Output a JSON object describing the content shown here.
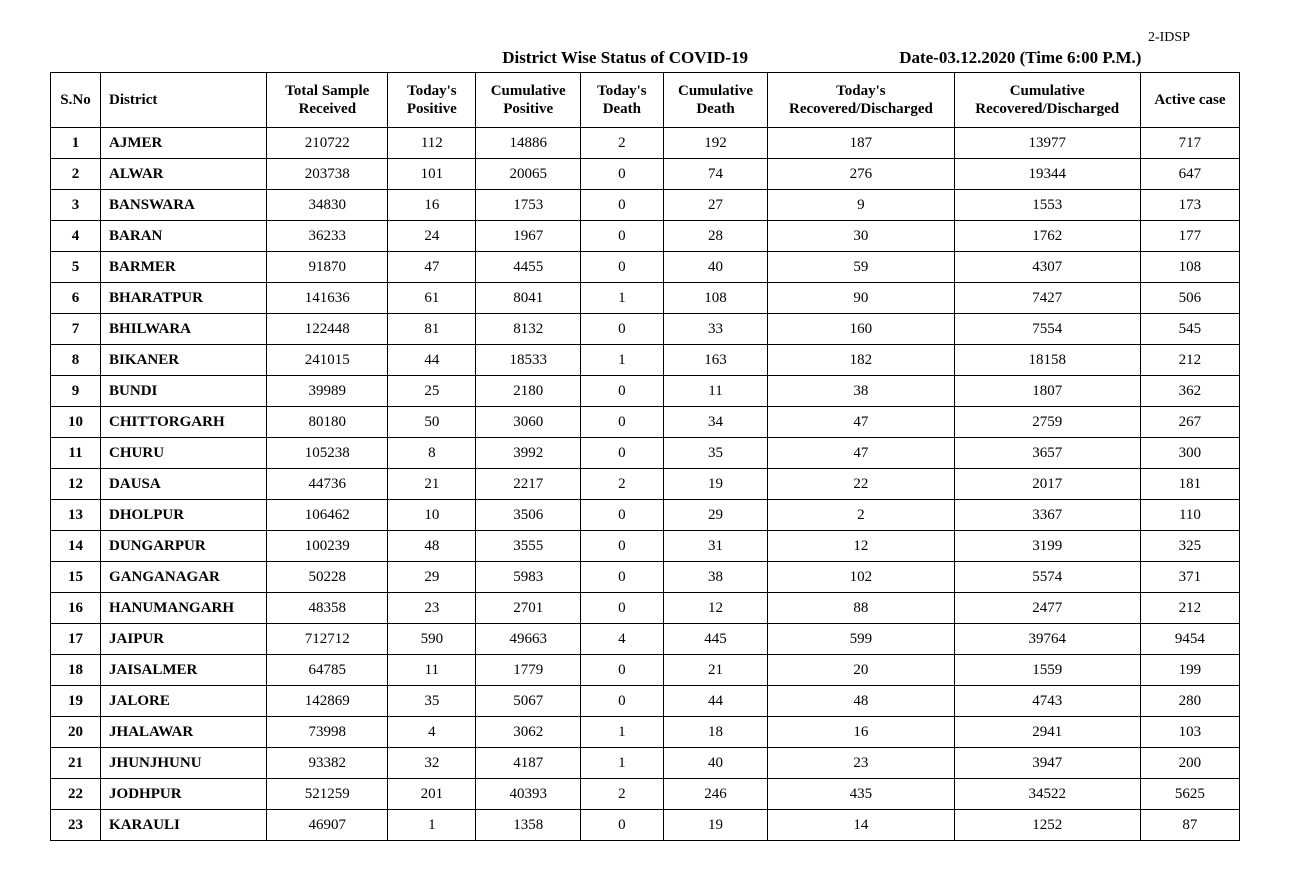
{
  "header": {
    "top_right": "2-IDSP",
    "title": "District Wise Status of  COVID-19",
    "date_label": "Date-03.12.2020 (Time 6:00 P.M.)"
  },
  "table": {
    "columns": [
      "S.No",
      "District",
      "Total Sample Received",
      "Today's Positive",
      "Cumulative Positive",
      "Today's Death",
      "Cumulative Death",
      "Today's Recovered/Discharged",
      "Cumulative Recovered/Discharged",
      "Active  case"
    ],
    "rows": [
      [
        "1",
        "AJMER",
        "210722",
        "112",
        "14886",
        "2",
        "192",
        "187",
        "13977",
        "717"
      ],
      [
        "2",
        "ALWAR",
        "203738",
        "101",
        "20065",
        "0",
        "74",
        "276",
        "19344",
        "647"
      ],
      [
        "3",
        "BANSWARA",
        "34830",
        "16",
        "1753",
        "0",
        "27",
        "9",
        "1553",
        "173"
      ],
      [
        "4",
        "BARAN",
        "36233",
        "24",
        "1967",
        "0",
        "28",
        "30",
        "1762",
        "177"
      ],
      [
        "5",
        "BARMER",
        "91870",
        "47",
        "4455",
        "0",
        "40",
        "59",
        "4307",
        "108"
      ],
      [
        "6",
        "BHARATPUR",
        "141636",
        "61",
        "8041",
        "1",
        "108",
        "90",
        "7427",
        "506"
      ],
      [
        "7",
        "BHILWARA",
        "122448",
        "81",
        "8132",
        "0",
        "33",
        "160",
        "7554",
        "545"
      ],
      [
        "8",
        "BIKANER",
        "241015",
        "44",
        "18533",
        "1",
        "163",
        "182",
        "18158",
        "212"
      ],
      [
        "9",
        "BUNDI",
        "39989",
        "25",
        "2180",
        "0",
        "11",
        "38",
        "1807",
        "362"
      ],
      [
        "10",
        "CHITTORGARH",
        "80180",
        "50",
        "3060",
        "0",
        "34",
        "47",
        "2759",
        "267"
      ],
      [
        "11",
        "CHURU",
        "105238",
        "8",
        "3992",
        "0",
        "35",
        "47",
        "3657",
        "300"
      ],
      [
        "12",
        "DAUSA",
        "44736",
        "21",
        "2217",
        "2",
        "19",
        "22",
        "2017",
        "181"
      ],
      [
        "13",
        "DHOLPUR",
        "106462",
        "10",
        "3506",
        "0",
        "29",
        "2",
        "3367",
        "110"
      ],
      [
        "14",
        "DUNGARPUR",
        "100239",
        "48",
        "3555",
        "0",
        "31",
        "12",
        "3199",
        "325"
      ],
      [
        "15",
        "GANGANAGAR",
        "50228",
        "29",
        "5983",
        "0",
        "38",
        "102",
        "5574",
        "371"
      ],
      [
        "16",
        "HANUMANGARH",
        "48358",
        "23",
        "2701",
        "0",
        "12",
        "88",
        "2477",
        "212"
      ],
      [
        "17",
        "JAIPUR",
        "712712",
        "590",
        "49663",
        "4",
        "445",
        "599",
        "39764",
        "9454"
      ],
      [
        "18",
        "JAISALMER",
        "64785",
        "11",
        "1779",
        "0",
        "21",
        "20",
        "1559",
        "199"
      ],
      [
        "19",
        "JALORE",
        "142869",
        "35",
        "5067",
        "0",
        "44",
        "48",
        "4743",
        "280"
      ],
      [
        "20",
        "JHALAWAR",
        "73998",
        "4",
        "3062",
        "1",
        "18",
        "16",
        "2941",
        "103"
      ],
      [
        "21",
        "JHUNJHUNU",
        "93382",
        "32",
        "4187",
        "1",
        "40",
        "23",
        "3947",
        "200"
      ],
      [
        "22",
        "JODHPUR",
        "521259",
        "201",
        "40393",
        "2",
        "246",
        "435",
        "34522",
        "5625"
      ],
      [
        "23",
        "KARAULI",
        "46907",
        "1",
        "1358",
        "0",
        "19",
        "14",
        "1252",
        "87"
      ]
    ]
  }
}
